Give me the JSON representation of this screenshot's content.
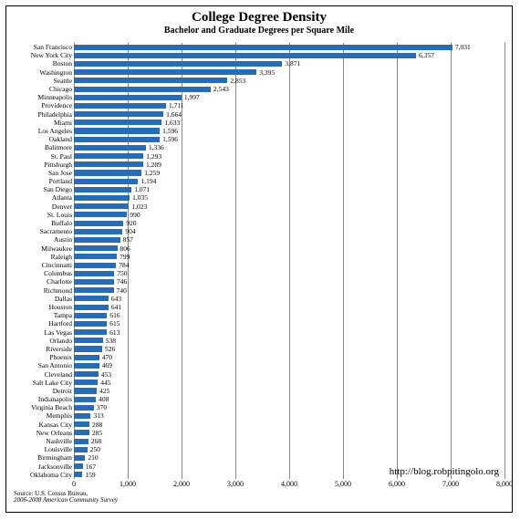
{
  "chart": {
    "type": "bar-horizontal",
    "title": "College Degree Density",
    "subtitle": "Bachelor and Graduate Degrees per Square Mile",
    "bar_color": "#2a6cb3",
    "grid_color": "#888888",
    "background_color": "#ffffff",
    "title_fontsize": 15,
    "subtitle_fontsize": 10,
    "label_fontsize": 7.5,
    "tick_fontsize": 8,
    "font_family": "Georgia, serif",
    "xlim": [
      0,
      8000
    ],
    "xtick_step": 1000,
    "xticks": [
      "0",
      "1,000",
      "2,000",
      "3,000",
      "4,000",
      "5,000",
      "6,000",
      "7,000",
      "8,000"
    ],
    "link": "http://blog.robpitingolo.org",
    "source_line1": "Source: U.S. Census Bureau,",
    "source_line2": "2006-2008 American Community Survey",
    "data": [
      {
        "c": "San Francisco",
        "v": 7031,
        "l": "7,031"
      },
      {
        "c": "New York City",
        "v": 6357,
        "l": "6,357"
      },
      {
        "c": "Boston",
        "v": 3871,
        "l": "3,871"
      },
      {
        "c": "Washington",
        "v": 3395,
        "l": "3,395"
      },
      {
        "c": "Seattle",
        "v": 2853,
        "l": "2,853"
      },
      {
        "c": "Chicago",
        "v": 2543,
        "l": "2,543"
      },
      {
        "c": "Minneapolis",
        "v": 1997,
        "l": "1,997"
      },
      {
        "c": "Providence",
        "v": 1711,
        "l": "1,711"
      },
      {
        "c": "Philadelphia",
        "v": 1664,
        "l": "1,664"
      },
      {
        "c": "Miami",
        "v": 1633,
        "l": "1,633"
      },
      {
        "c": "Los Angeles",
        "v": 1596,
        "l": "1,596"
      },
      {
        "c": "Oakland",
        "v": 1596,
        "l": "1,596"
      },
      {
        "c": "Balitmore",
        "v": 1336,
        "l": "1,336"
      },
      {
        "c": "St. Paul",
        "v": 1293,
        "l": "1,293"
      },
      {
        "c": "Pittsburgh",
        "v": 1289,
        "l": "1,289"
      },
      {
        "c": "San Jose",
        "v": 1259,
        "l": "1,259"
      },
      {
        "c": "Portland",
        "v": 1194,
        "l": "1,194"
      },
      {
        "c": "San Diego",
        "v": 1071,
        "l": "1,071"
      },
      {
        "c": "Atlanta",
        "v": 1035,
        "l": "1,035"
      },
      {
        "c": "Denver",
        "v": 1023,
        "l": "1,023"
      },
      {
        "c": "St. Louis",
        "v": 990,
        "l": "990"
      },
      {
        "c": "Buffalo",
        "v": 920,
        "l": "920"
      },
      {
        "c": "Sacramento",
        "v": 904,
        "l": "904"
      },
      {
        "c": "Austin",
        "v": 857,
        "l": "857"
      },
      {
        "c": "Milwaukee",
        "v": 806,
        "l": "806"
      },
      {
        "c": "Raleigh",
        "v": 799,
        "l": "799"
      },
      {
        "c": "Cincinnatti",
        "v": 784,
        "l": "784"
      },
      {
        "c": "Columbus",
        "v": 750,
        "l": "750"
      },
      {
        "c": "Charlotte",
        "v": 746,
        "l": "746"
      },
      {
        "c": "Richmond",
        "v": 740,
        "l": "740"
      },
      {
        "c": "Dallas",
        "v": 643,
        "l": "643"
      },
      {
        "c": "Houston",
        "v": 641,
        "l": "641"
      },
      {
        "c": "Tampa",
        "v": 616,
        "l": "616"
      },
      {
        "c": "Hartford",
        "v": 615,
        "l": "615"
      },
      {
        "c": "Las Vegas",
        "v": 613,
        "l": "613"
      },
      {
        "c": "Orlando",
        "v": 538,
        "l": "538"
      },
      {
        "c": "Riverside",
        "v": 526,
        "l": "526"
      },
      {
        "c": "Phoenix",
        "v": 470,
        "l": "470"
      },
      {
        "c": "San Antonio",
        "v": 469,
        "l": "469"
      },
      {
        "c": "Cleveland",
        "v": 453,
        "l": "453"
      },
      {
        "c": "Salt Lake City",
        "v": 445,
        "l": "445"
      },
      {
        "c": "Detroit",
        "v": 425,
        "l": "425"
      },
      {
        "c": "Indianapolis",
        "v": 408,
        "l": "408"
      },
      {
        "c": "Virginia Beach",
        "v": 370,
        "l": "370"
      },
      {
        "c": "Memphis",
        "v": 313,
        "l": "313"
      },
      {
        "c": "Kansas City",
        "v": 288,
        "l": "288"
      },
      {
        "c": "New Orleans",
        "v": 285,
        "l": "285"
      },
      {
        "c": "Nashville",
        "v": 268,
        "l": "268"
      },
      {
        "c": "Louisville",
        "v": 250,
        "l": "250"
      },
      {
        "c": "Birmingham",
        "v": 210,
        "l": "210"
      },
      {
        "c": "Jacksonville",
        "v": 167,
        "l": "167"
      },
      {
        "c": "Oklahoma City",
        "v": 159,
        "l": "159"
      }
    ]
  }
}
